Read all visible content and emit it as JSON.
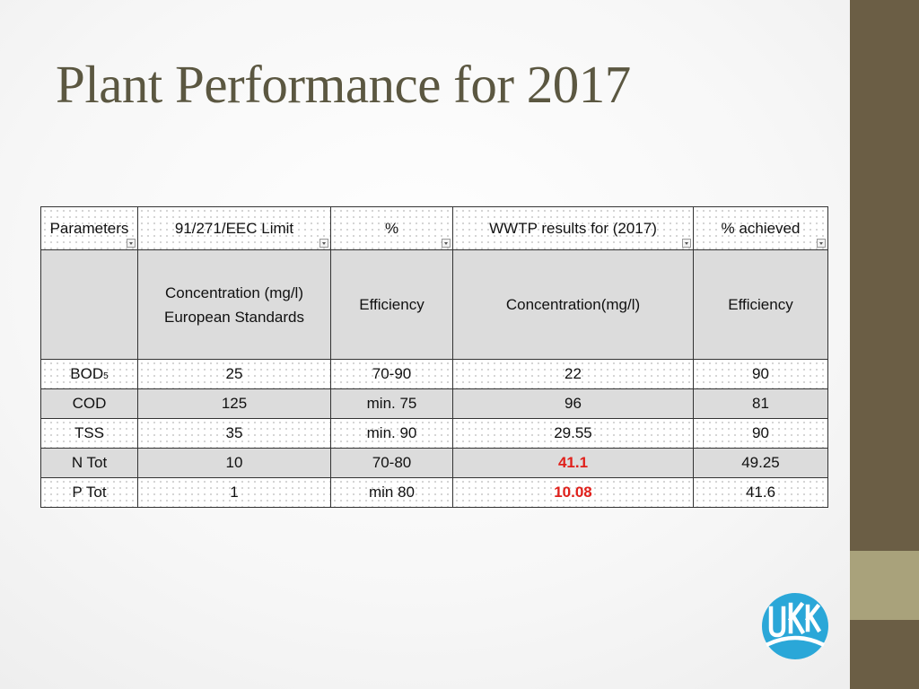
{
  "slide": {
    "title": "Plant Performance for 2017"
  },
  "table": {
    "headers": [
      "Parameters",
      "91/271/EEC Limit",
      "%",
      "WWTP results for (2017)",
      "% achieved"
    ],
    "subheaders": {
      "col1_line1": "Concentration (mg/l)",
      "col1_line2": "European Standards",
      "col2": "Efficiency",
      "col3": "Concentration(mg/l)",
      "col4": "Efficiency"
    },
    "rows": [
      {
        "parameter": "BOD",
        "parameter_sub": "5",
        "limit": "25",
        "efficiency": "70-90",
        "result": "22",
        "achieved": "90",
        "highlight": false
      },
      {
        "parameter": "COD",
        "parameter_sub": "",
        "limit": "125",
        "efficiency": "min. 75",
        "result": "96",
        "achieved": "81",
        "highlight": false
      },
      {
        "parameter": "TSS",
        "parameter_sub": "",
        "limit": "35",
        "efficiency": "min. 90",
        "result": "29.55",
        "achieved": "90",
        "highlight": false
      },
      {
        "parameter": "N Tot",
        "parameter_sub": "",
        "limit": "10",
        "efficiency": "70-80",
        "result": "41.1",
        "achieved": "49.25",
        "highlight": true
      },
      {
        "parameter": "P Tot",
        "parameter_sub": "",
        "limit": "1",
        "efficiency": "min 80",
        "result": "10.08",
        "achieved": "41.6",
        "highlight": true
      }
    ],
    "highlight_color": "#e0201b"
  },
  "theme": {
    "sidebar": "#6b5e45",
    "accent": "#a9a27b",
    "title_color": "#5b5741",
    "logo_color": "#2aa7d8"
  },
  "logo": {
    "icon": "organization-logo-icon"
  }
}
